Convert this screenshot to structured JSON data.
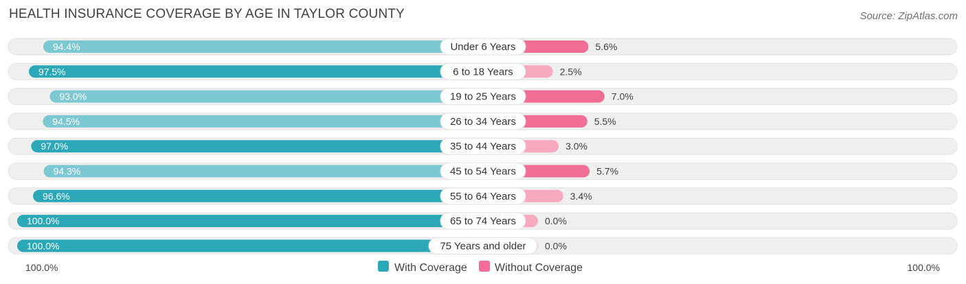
{
  "title": "HEALTH INSURANCE COVERAGE BY AGE IN TAYLOR COUNTY",
  "source": "Source: ZipAtlas.com",
  "colors": {
    "with_dark": "#2aa8b8",
    "with_light": "#7cc8d2",
    "without_dark": "#f06e96",
    "without_light": "#f7a9c0",
    "track": "#efefef"
  },
  "chart_data": {
    "type": "bar",
    "orientation": "horizontal-diverging",
    "categories": [
      "Under 6 Years",
      "6 to 18 Years",
      "19 to 25 Years",
      "26 to 34 Years",
      "35 to 44 Years",
      "45 to 54 Years",
      "55 to 64 Years",
      "65 to 74 Years",
      "75 Years and older"
    ],
    "series": [
      {
        "name": "With Coverage",
        "values": [
          94.4,
          97.5,
          93.0,
          94.5,
          97.0,
          94.3,
          96.6,
          100.0,
          100.0
        ],
        "labels": [
          "94.4%",
          "97.5%",
          "93.0%",
          "94.5%",
          "97.0%",
          "94.3%",
          "96.6%",
          "100.0%",
          "100.0%"
        ]
      },
      {
        "name": "Without Coverage",
        "values": [
          5.6,
          2.5,
          7.0,
          5.5,
          3.0,
          5.7,
          3.4,
          0.0,
          0.0
        ],
        "labels": [
          "5.6%",
          "2.5%",
          "7.0%",
          "5.5%",
          "3.0%",
          "5.7%",
          "3.4%",
          "0.0%",
          "0.0%"
        ]
      }
    ],
    "axis": {
      "left_label": "100.0%",
      "right_label": "100.0%",
      "xlim": [
        0,
        100
      ]
    },
    "legend": {
      "position": "bottom-center",
      "items": [
        "With Coverage",
        "Without Coverage"
      ]
    }
  }
}
